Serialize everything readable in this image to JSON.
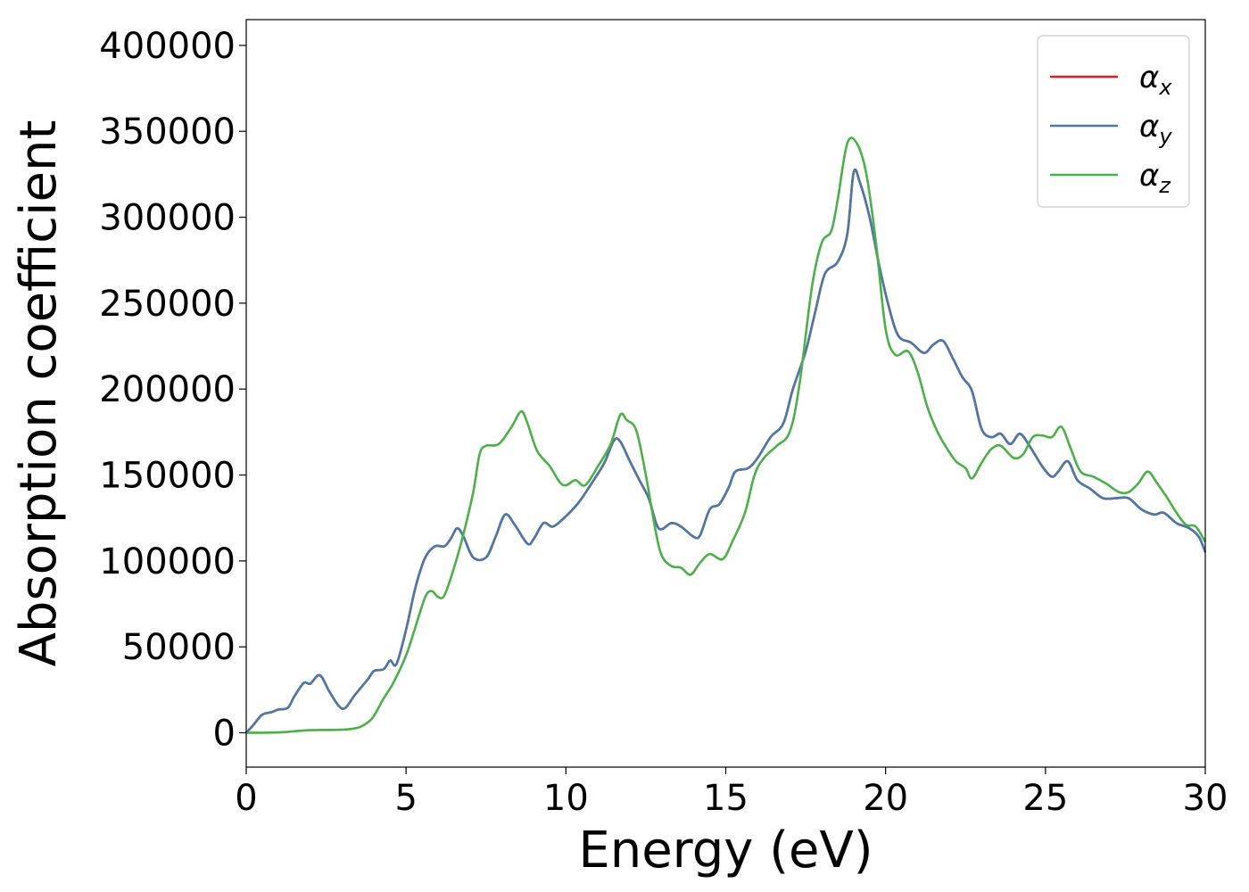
{
  "chart_data": {
    "type": "line",
    "title": "",
    "xlabel": "Energy (eV)",
    "ylabel": "Absorption coefficient",
    "xlim": [
      0,
      30
    ],
    "ylim": [
      -20000,
      415000
    ],
    "x_ticks": [
      "0",
      "5",
      "10",
      "15",
      "20",
      "25",
      "30"
    ],
    "y_ticks": [
      "0",
      "50000",
      "100000",
      "150000",
      "200000",
      "250000",
      "300000",
      "350000",
      "400000"
    ],
    "grid": false,
    "legend_position": "top-right",
    "series": [
      {
        "name": "α",
        "subscript": "x",
        "color": "#e41a1c",
        "points": [
          [
            0,
            0
          ],
          [
            0.2,
            4000
          ],
          [
            0.5,
            10500
          ],
          [
            0.8,
            12000
          ],
          [
            1.0,
            13500
          ],
          [
            1.3,
            14500
          ],
          [
            1.5,
            21000
          ],
          [
            1.8,
            29000
          ],
          [
            2.0,
            28500
          ],
          [
            2.3,
            33500
          ],
          [
            2.6,
            24000
          ],
          [
            2.9,
            15500
          ],
          [
            3.1,
            14500
          ],
          [
            3.4,
            22000
          ],
          [
            3.8,
            31000
          ],
          [
            4.0,
            36000
          ],
          [
            4.3,
            37000
          ],
          [
            4.5,
            42000
          ],
          [
            4.7,
            40000
          ],
          [
            5.0,
            60000
          ],
          [
            5.3,
            85000
          ],
          [
            5.6,
            102000
          ],
          [
            5.9,
            108500
          ],
          [
            6.2,
            108500
          ],
          [
            6.4,
            113000
          ],
          [
            6.6,
            119000
          ],
          [
            6.8,
            114000
          ],
          [
            7.1,
            102000
          ],
          [
            7.5,
            102000
          ],
          [
            7.8,
            114000
          ],
          [
            8.1,
            127000
          ],
          [
            8.4,
            121000
          ],
          [
            8.8,
            110000
          ],
          [
            9.0,
            113000
          ],
          [
            9.3,
            122000
          ],
          [
            9.6,
            120000
          ],
          [
            10.0,
            126000
          ],
          [
            10.4,
            134000
          ],
          [
            10.8,
            145000
          ],
          [
            11.2,
            157000
          ],
          [
            11.5,
            170000
          ],
          [
            11.7,
            169500
          ],
          [
            12.0,
            158000
          ],
          [
            12.3,
            147000
          ],
          [
            12.6,
            136000
          ],
          [
            12.9,
            119000
          ],
          [
            13.3,
            122000
          ],
          [
            13.6,
            120000
          ],
          [
            14.0,
            114000
          ],
          [
            14.2,
            115000
          ],
          [
            14.5,
            130000
          ],
          [
            14.8,
            133000
          ],
          [
            15.1,
            143000
          ],
          [
            15.3,
            152000
          ],
          [
            15.7,
            154000
          ],
          [
            16.0,
            160000
          ],
          [
            16.4,
            172000
          ],
          [
            16.8,
            180000
          ],
          [
            17.1,
            200000
          ],
          [
            17.5,
            222000
          ],
          [
            17.8,
            245000
          ],
          [
            18.1,
            267000
          ],
          [
            18.5,
            274000
          ],
          [
            18.8,
            290000
          ],
          [
            19.0,
            326000
          ],
          [
            19.2,
            320000
          ],
          [
            19.5,
            300000
          ],
          [
            19.8,
            272000
          ],
          [
            20.1,
            248000
          ],
          [
            20.4,
            231000
          ],
          [
            20.8,
            227000
          ],
          [
            21.2,
            221000
          ],
          [
            21.5,
            226000
          ],
          [
            21.8,
            228000
          ],
          [
            22.1,
            218000
          ],
          [
            22.4,
            207000
          ],
          [
            22.7,
            199000
          ],
          [
            23.0,
            177000
          ],
          [
            23.3,
            172000
          ],
          [
            23.6,
            174000
          ],
          [
            23.9,
            168000
          ],
          [
            24.2,
            174000
          ],
          [
            24.5,
            167000
          ],
          [
            24.9,
            155000
          ],
          [
            25.2,
            149000
          ],
          [
            25.4,
            152000
          ],
          [
            25.7,
            158000
          ],
          [
            26.0,
            147000
          ],
          [
            26.4,
            142000
          ],
          [
            26.8,
            136500
          ],
          [
            27.2,
            136500
          ],
          [
            27.6,
            136500
          ],
          [
            28.0,
            130000
          ],
          [
            28.4,
            127000
          ],
          [
            28.7,
            128000
          ],
          [
            29.1,
            122000
          ],
          [
            29.5,
            119000
          ],
          [
            29.8,
            114000
          ],
          [
            30.0,
            105000
          ]
        ]
      },
      {
        "name": "α",
        "subscript": "y",
        "color": "#4a79a8",
        "points": [
          [
            0,
            0
          ],
          [
            0.2,
            4000
          ],
          [
            0.5,
            10500
          ],
          [
            0.8,
            12000
          ],
          [
            1.0,
            13500
          ],
          [
            1.3,
            14500
          ],
          [
            1.5,
            21000
          ],
          [
            1.8,
            29000
          ],
          [
            2.0,
            28500
          ],
          [
            2.3,
            33500
          ],
          [
            2.6,
            24000
          ],
          [
            2.9,
            15500
          ],
          [
            3.1,
            14500
          ],
          [
            3.4,
            22000
          ],
          [
            3.8,
            31000
          ],
          [
            4.0,
            36000
          ],
          [
            4.3,
            37000
          ],
          [
            4.5,
            42000
          ],
          [
            4.7,
            40000
          ],
          [
            5.0,
            60000
          ],
          [
            5.3,
            85000
          ],
          [
            5.6,
            102000
          ],
          [
            5.9,
            108500
          ],
          [
            6.2,
            108500
          ],
          [
            6.4,
            113000
          ],
          [
            6.6,
            119000
          ],
          [
            6.8,
            114000
          ],
          [
            7.1,
            102000
          ],
          [
            7.5,
            102000
          ],
          [
            7.8,
            114000
          ],
          [
            8.1,
            127000
          ],
          [
            8.4,
            121000
          ],
          [
            8.8,
            110000
          ],
          [
            9.0,
            113000
          ],
          [
            9.3,
            122000
          ],
          [
            9.6,
            120000
          ],
          [
            10.0,
            126000
          ],
          [
            10.4,
            134000
          ],
          [
            10.8,
            145000
          ],
          [
            11.2,
            157000
          ],
          [
            11.5,
            170000
          ],
          [
            11.7,
            169500
          ],
          [
            12.0,
            158000
          ],
          [
            12.3,
            147000
          ],
          [
            12.6,
            136000
          ],
          [
            12.9,
            119000
          ],
          [
            13.3,
            122000
          ],
          [
            13.6,
            120000
          ],
          [
            14.0,
            114000
          ],
          [
            14.2,
            115000
          ],
          [
            14.5,
            130000
          ],
          [
            14.8,
            133000
          ],
          [
            15.1,
            143000
          ],
          [
            15.3,
            152000
          ],
          [
            15.7,
            154000
          ],
          [
            16.0,
            160000
          ],
          [
            16.4,
            172000
          ],
          [
            16.8,
            180000
          ],
          [
            17.1,
            200000
          ],
          [
            17.5,
            222000
          ],
          [
            17.8,
            245000
          ],
          [
            18.1,
            267000
          ],
          [
            18.5,
            274000
          ],
          [
            18.8,
            290000
          ],
          [
            19.0,
            326000
          ],
          [
            19.2,
            320000
          ],
          [
            19.5,
            300000
          ],
          [
            19.8,
            272000
          ],
          [
            20.1,
            248000
          ],
          [
            20.4,
            231000
          ],
          [
            20.8,
            227000
          ],
          [
            21.2,
            221000
          ],
          [
            21.5,
            226000
          ],
          [
            21.8,
            228000
          ],
          [
            22.1,
            218000
          ],
          [
            22.4,
            207000
          ],
          [
            22.7,
            199000
          ],
          [
            23.0,
            177000
          ],
          [
            23.3,
            172000
          ],
          [
            23.6,
            174000
          ],
          [
            23.9,
            168000
          ],
          [
            24.2,
            174000
          ],
          [
            24.5,
            167000
          ],
          [
            24.9,
            155000
          ],
          [
            25.2,
            149000
          ],
          [
            25.4,
            152000
          ],
          [
            25.7,
            158000
          ],
          [
            26.0,
            147000
          ],
          [
            26.4,
            142000
          ],
          [
            26.8,
            136500
          ],
          [
            27.2,
            136500
          ],
          [
            27.6,
            136500
          ],
          [
            28.0,
            130000
          ],
          [
            28.4,
            127000
          ],
          [
            28.7,
            128000
          ],
          [
            29.1,
            122000
          ],
          [
            29.5,
            119000
          ],
          [
            29.8,
            114000
          ],
          [
            30.0,
            105000
          ]
        ]
      },
      {
        "name": "α",
        "subscript": "z",
        "color": "#4daf4a",
        "points": [
          [
            0,
            0
          ],
          [
            1.0,
            200
          ],
          [
            2.0,
            1500
          ],
          [
            3.0,
            1800
          ],
          [
            3.5,
            3000
          ],
          [
            3.8,
            6000
          ],
          [
            4.0,
            10000
          ],
          [
            4.3,
            20000
          ],
          [
            4.6,
            29000
          ],
          [
            5.0,
            45000
          ],
          [
            5.3,
            62000
          ],
          [
            5.6,
            79000
          ],
          [
            5.8,
            82500
          ],
          [
            6.0,
            79000
          ],
          [
            6.2,
            80000
          ],
          [
            6.5,
            96000
          ],
          [
            6.8,
            116000
          ],
          [
            7.1,
            140000
          ],
          [
            7.3,
            162000
          ],
          [
            7.5,
            167000
          ],
          [
            7.9,
            168000
          ],
          [
            8.3,
            178000
          ],
          [
            8.6,
            187000
          ],
          [
            8.8,
            180000
          ],
          [
            9.1,
            164000
          ],
          [
            9.5,
            155000
          ],
          [
            9.8,
            146000
          ],
          [
            10.0,
            144000
          ],
          [
            10.3,
            147000
          ],
          [
            10.6,
            144000
          ],
          [
            11.0,
            155000
          ],
          [
            11.4,
            168000
          ],
          [
            11.7,
            185000
          ],
          [
            11.9,
            182000
          ],
          [
            12.2,
            176000
          ],
          [
            12.5,
            150000
          ],
          [
            12.8,
            118000
          ],
          [
            13.0,
            103000
          ],
          [
            13.3,
            97000
          ],
          [
            13.6,
            96000
          ],
          [
            13.9,
            92000
          ],
          [
            14.2,
            99000
          ],
          [
            14.5,
            104000
          ],
          [
            14.9,
            101000
          ],
          [
            15.2,
            111000
          ],
          [
            15.6,
            128000
          ],
          [
            15.9,
            150000
          ],
          [
            16.2,
            160000
          ],
          [
            16.6,
            167000
          ],
          [
            17.0,
            175000
          ],
          [
            17.3,
            202000
          ],
          [
            17.7,
            260000
          ],
          [
            18.0,
            285000
          ],
          [
            18.3,
            292000
          ],
          [
            18.5,
            310000
          ],
          [
            18.8,
            343000
          ],
          [
            19.1,
            343000
          ],
          [
            19.4,
            325000
          ],
          [
            19.7,
            285000
          ],
          [
            20.0,
            235000
          ],
          [
            20.3,
            220000
          ],
          [
            20.7,
            222000
          ],
          [
            21.0,
            210000
          ],
          [
            21.3,
            190000
          ],
          [
            21.6,
            176000
          ],
          [
            21.9,
            166000
          ],
          [
            22.2,
            158000
          ],
          [
            22.5,
            154000
          ],
          [
            22.7,
            148000
          ],
          [
            23.0,
            157000
          ],
          [
            23.3,
            165000
          ],
          [
            23.6,
            167000
          ],
          [
            24.0,
            160000
          ],
          [
            24.3,
            162000
          ],
          [
            24.6,
            172000
          ],
          [
            24.9,
            173000
          ],
          [
            25.2,
            172000
          ],
          [
            25.5,
            178000
          ],
          [
            25.8,
            165000
          ],
          [
            26.1,
            152000
          ],
          [
            26.5,
            149000
          ],
          [
            26.9,
            145000
          ],
          [
            27.3,
            140000
          ],
          [
            27.6,
            140000
          ],
          [
            27.9,
            145000
          ],
          [
            28.2,
            152000
          ],
          [
            28.5,
            145000
          ],
          [
            28.8,
            137000
          ],
          [
            29.1,
            128000
          ],
          [
            29.4,
            121000
          ],
          [
            29.7,
            120000
          ],
          [
            30.0,
            111000
          ]
        ]
      }
    ]
  }
}
